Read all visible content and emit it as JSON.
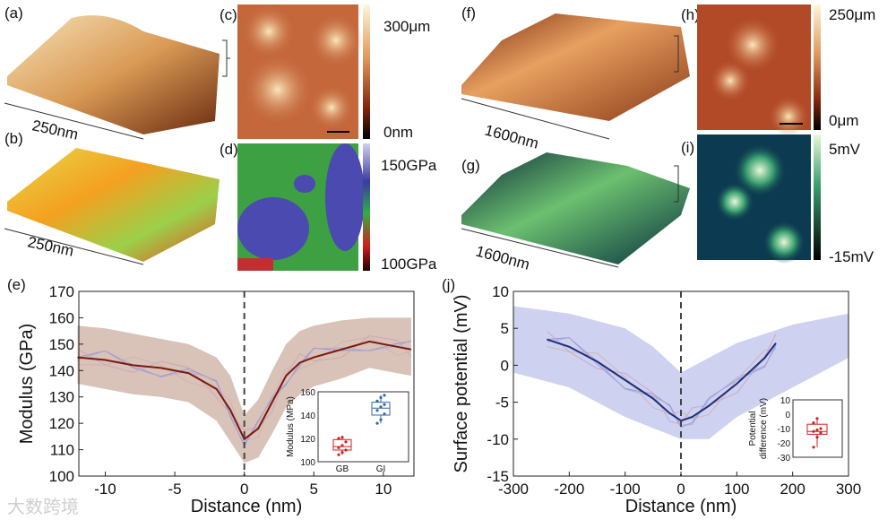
{
  "panels": {
    "a": {
      "label": "(a)",
      "scale": "250nm"
    },
    "b": {
      "label": "(b)",
      "scale": "250nm"
    },
    "c": {
      "label": "(c)",
      "cbar_max": "300μm",
      "cbar_min": "0nm"
    },
    "d": {
      "label": "(d)",
      "cbar_max": "150GPa",
      "cbar_min": "100GPa"
    },
    "f": {
      "label": "(f)",
      "scale": "1600nm"
    },
    "g": {
      "label": "(g)",
      "scale": "1600nm"
    },
    "h": {
      "label": "(h)",
      "cbar_max": "250μm",
      "cbar_min": "0μm"
    },
    "i": {
      "label": "(i)",
      "cbar_max": "5mV",
      "cbar_min": "-15mV"
    }
  },
  "watermark": "大数跨境",
  "chart_data": [
    {
      "id": "e",
      "label": "(e)",
      "type": "line",
      "xlabel": "Distance (nm)",
      "ylabel": "Modulus (GPa)",
      "xlim": [
        -11.9,
        12.2
      ],
      "ylim": [
        100,
        170
      ],
      "xticks": [
        -10,
        -5,
        0,
        5,
        10
      ],
      "yticks": [
        100,
        110,
        120,
        130,
        140,
        150,
        160,
        170
      ],
      "line_color": "#7a1a10",
      "band_color": "#c9a898",
      "mean": {
        "x": [
          -12,
          -10,
          -8,
          -6,
          -4,
          -2,
          -1,
          0,
          1,
          2,
          3,
          4,
          5,
          7,
          9,
          11,
          12
        ],
        "y": [
          145,
          144,
          142,
          141,
          139,
          133,
          125,
          114,
          118,
          128,
          138,
          143,
          145,
          148,
          151,
          149,
          148
        ]
      },
      "band_upper": [
        157,
        156,
        154,
        152,
        150,
        145,
        138,
        123,
        129,
        140,
        150,
        155,
        157,
        159,
        160,
        160,
        160
      ],
      "band_lower": [
        135,
        133,
        131,
        130,
        128,
        121,
        113,
        105,
        107,
        116,
        126,
        131,
        134,
        137,
        141,
        139,
        138
      ],
      "inset": {
        "type": "box",
        "ylabel": "Modulus (MPa)",
        "ylim": [
          100,
          160
        ],
        "yticks": [
          100,
          120,
          140,
          160
        ],
        "color_gb": "#d42020",
        "color_gi": "#2f6aa8",
        "categories": [
          "GB",
          "GI"
        ],
        "boxes": [
          {
            "q1": 110,
            "median": 113,
            "q3": 119,
            "min": 106,
            "max": 121,
            "points": [
              106,
              108,
              110,
              112,
              114,
              117,
              120,
              121
            ]
          },
          {
            "q1": 140,
            "median": 146,
            "q3": 151,
            "min": 133,
            "max": 157,
            "points": [
              133,
              136,
              141,
              144,
              147,
              149,
              152,
              155,
              157
            ]
          }
        ]
      }
    },
    {
      "id": "j",
      "label": "(j)",
      "type": "line",
      "xlabel": "Distance (nm)",
      "ylabel": "Surface potential (mV)",
      "xlim": [
        -300,
        300
      ],
      "ylim": [
        -15,
        10
      ],
      "xticks": [
        -300,
        -200,
        -100,
        0,
        100,
        200,
        300
      ],
      "yticks": [
        -15,
        -10,
        -5,
        0,
        5,
        10
      ],
      "line_color": "#1f2f7a",
      "band_color": "#b9bde8",
      "mean": {
        "x": [
          -240,
          -200,
          -150,
          -100,
          -50,
          -20,
          0,
          20,
          50,
          100,
          150,
          170
        ],
        "y": [
          3.5,
          2.5,
          0.5,
          -2,
          -4.5,
          -6.5,
          -7.5,
          -7,
          -5.5,
          -2.5,
          1,
          3
        ]
      },
      "band": {
        "x": [
          -300,
          -200,
          -100,
          -50,
          0,
          50,
          100,
          200,
          300
        ],
        "upper": [
          8,
          7,
          5,
          2.5,
          -1,
          1,
          3,
          5.5,
          7
        ],
        "lower": [
          -1,
          -3,
          -7,
          -8.5,
          -10,
          -10,
          -7,
          -3,
          1
        ]
      },
      "inset": {
        "type": "box",
        "ylabel_1": "Potential",
        "ylabel_2": "difference (mV)",
        "ylim": [
          -30,
          10
        ],
        "yticks": [
          10,
          0,
          -10,
          -20,
          -30
        ],
        "color": "#d42020",
        "boxes": [
          {
            "q1": -14,
            "median": -12,
            "q3": -7,
            "min": -23,
            "max": -3,
            "points": [
              -23,
              -16,
              -13,
              -12,
              -11,
              -10,
              -6,
              -3
            ]
          }
        ]
      }
    }
  ]
}
